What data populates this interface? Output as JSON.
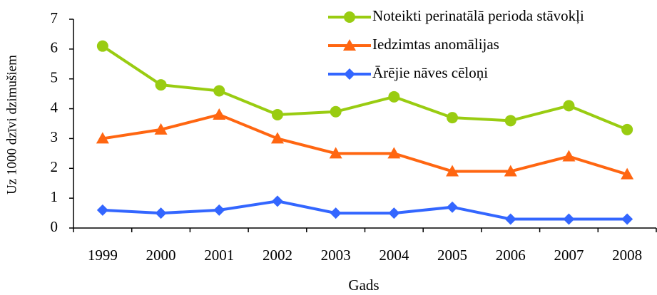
{
  "chart_data": {
    "type": "line",
    "xlabel": "Gads",
    "ylabel": "Uz 1000 dzīvi dzimušiem",
    "categories": [
      "1999",
      "2000",
      "2001",
      "2002",
      "2003",
      "2004",
      "2005",
      "2006",
      "2007",
      "2008"
    ],
    "series": [
      {
        "name": "Noteikti perinatālā perioda stāvokļi",
        "color": "#99cc11",
        "marker": "circle",
        "values": [
          6.1,
          4.8,
          4.6,
          3.8,
          3.9,
          4.4,
          3.7,
          3.6,
          4.1,
          3.3
        ]
      },
      {
        "name": "Iedzimtas anomālijas",
        "color": "#ff6611",
        "marker": "triangle",
        "values": [
          3.0,
          3.3,
          3.8,
          3.0,
          2.5,
          2.5,
          1.9,
          1.9,
          2.4,
          1.8
        ]
      },
      {
        "name": "Ārējie nāves cēloņi",
        "color": "#3366ff",
        "marker": "diamond",
        "values": [
          0.6,
          0.5,
          0.6,
          0.9,
          0.5,
          0.5,
          0.7,
          0.3,
          0.3,
          0.3
        ]
      }
    ],
    "ylim": [
      0,
      7
    ],
    "yticks": [
      0,
      1,
      2,
      3,
      4,
      5,
      6,
      7
    ],
    "grid": false,
    "legend": "upper right"
  }
}
